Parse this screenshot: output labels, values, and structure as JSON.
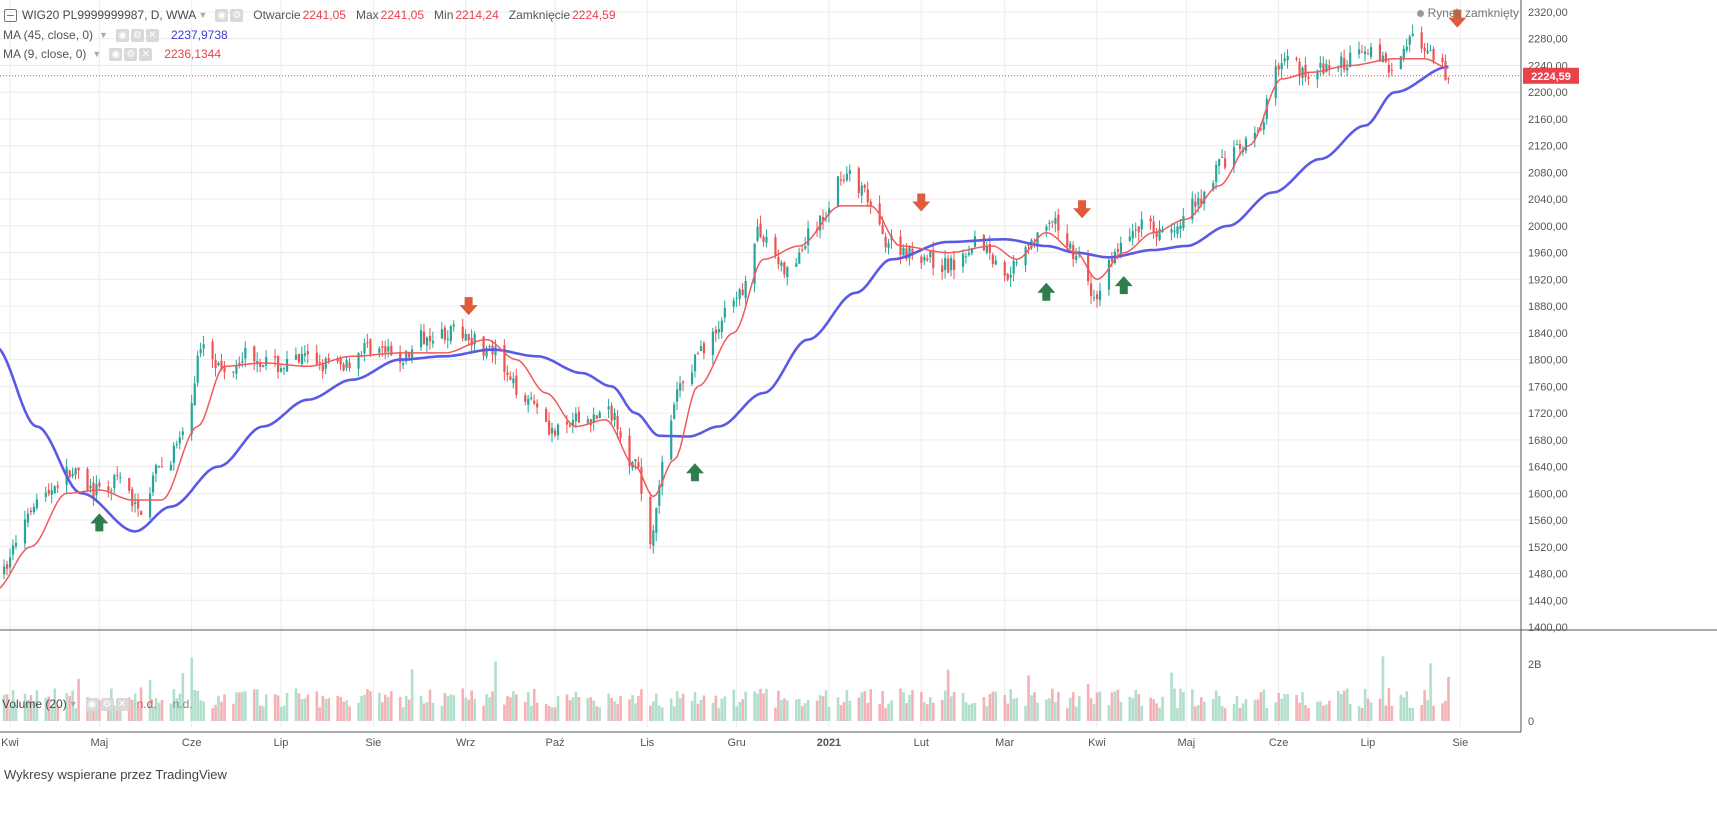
{
  "header": {
    "symbol": "WIG20 PL9999999987, D, WWA",
    "ohlc": [
      {
        "label": "Otwarcie",
        "value": "2241,05"
      },
      {
        "label": "Max",
        "value": "2241,05"
      },
      {
        "label": "Min",
        "value": "2214,24"
      },
      {
        "label": "Zamknięcie",
        "value": "2224,59"
      }
    ],
    "market_status": "Rynek zamknięty"
  },
  "indicators": [
    {
      "label": "MA (45, close, 0)",
      "value": "2237,9738",
      "color": "#3b3bdd"
    },
    {
      "label": "MA (9, close, 0)",
      "value": "2236,1344",
      "color": "#e8424b"
    }
  ],
  "volume_legend": {
    "label": "Volume (20)",
    "val1": "n.d.",
    "val2": "n.d."
  },
  "credit": "Wykresy wspierane przez TradingView",
  "colors": {
    "up": "#26a69a",
    "down": "#ef5350",
    "ma45": "#5a5ae6",
    "ma9": "#f05a5e",
    "price_label_bg": "#e8424b",
    "arrow_up": "#2e7d4f",
    "arrow_down": "#e05a3c"
  },
  "chart_data": {
    "type": "candlestick",
    "y_axis": {
      "ylim": [
        1400,
        2320
      ],
      "ticks": [
        "2320,00",
        "2280,00",
        "2240,00",
        "2200,00",
        "2160,00",
        "2120,00",
        "2080,00",
        "2040,00",
        "2000,00",
        "1960,00",
        "1920,00",
        "1880,00",
        "1840,00",
        "1800,00",
        "1760,00",
        "1720,00",
        "1680,00",
        "1640,00",
        "1600,00",
        "1560,00",
        "1520,00",
        "1480,00",
        "1440,00",
        "1400,00"
      ],
      "tick_values": [
        2320,
        2280,
        2240,
        2200,
        2160,
        2120,
        2080,
        2040,
        2000,
        1960,
        1920,
        1880,
        1840,
        1800,
        1760,
        1720,
        1680,
        1640,
        1600,
        1560,
        1520,
        1480,
        1440,
        1400
      ]
    },
    "x_axis": {
      "labels": [
        "Kwi",
        "Maj",
        "Cze",
        "Lip",
        "Sie",
        "Wrz",
        "Paź",
        "Lis",
        "Gru",
        "2021",
        "Lut",
        "Mar",
        "Kwi",
        "Maj",
        "Cze",
        "Lip",
        "Sie"
      ],
      "label_dates": [
        "2020-04-01",
        "2020-05-01",
        "2020-06-01",
        "2020-07-01",
        "2020-08-01",
        "2020-09-01",
        "2020-10-01",
        "2020-11-01",
        "2020-12-01",
        "2021-01-01",
        "2021-02-01",
        "2021-03-01",
        "2021-04-01",
        "2021-05-01",
        "2021-06-01",
        "2021-07-01",
        "2021-08-01"
      ]
    },
    "date_range": [
      "2020-04-01",
      "2021-08-01"
    ],
    "price_anchors": [
      [
        "2020-03-27",
        1470
      ],
      [
        "2020-04-10",
        1590
      ],
      [
        "2020-04-21",
        1630
      ],
      [
        "2020-05-01",
        1600
      ],
      [
        "2020-05-08",
        1620
      ],
      [
        "2020-05-14",
        1575
      ],
      [
        "2020-05-22",
        1640
      ],
      [
        "2020-05-29",
        1680
      ],
      [
        "2020-06-05",
        1830
      ],
      [
        "2020-06-12",
        1780
      ],
      [
        "2020-06-19",
        1810
      ],
      [
        "2020-06-30",
        1790
      ],
      [
        "2020-07-10",
        1800
      ],
      [
        "2020-07-20",
        1790
      ],
      [
        "2020-07-31",
        1820
      ],
      [
        "2020-08-10",
        1800
      ],
      [
        "2020-08-20",
        1840
      ],
      [
        "2020-08-31",
        1840
      ],
      [
        "2020-09-10",
        1810
      ],
      [
        "2020-09-17",
        1760
      ],
      [
        "2020-09-24",
        1740
      ],
      [
        "2020-10-01",
        1690
      ],
      [
        "2020-10-10",
        1710
      ],
      [
        "2020-10-20",
        1720
      ],
      [
        "2020-10-28",
        1640
      ],
      [
        "2020-11-02",
        1530
      ],
      [
        "2020-11-06",
        1640
      ],
      [
        "2020-11-12",
        1760
      ],
      [
        "2020-11-20",
        1820
      ],
      [
        "2020-11-30",
        1880
      ],
      [
        "2020-12-09",
        1990
      ],
      [
        "2020-12-18",
        1930
      ],
      [
        "2020-12-28",
        2000
      ],
      [
        "2021-01-06",
        2080
      ],
      [
        "2021-01-12",
        2050
      ],
      [
        "2021-01-20",
        1980
      ],
      [
        "2021-01-29",
        1960
      ],
      [
        "2021-02-10",
        1940
      ],
      [
        "2021-02-20",
        1980
      ],
      [
        "2021-03-01",
        1930
      ],
      [
        "2021-03-10",
        1980
      ],
      [
        "2021-03-18",
        2000
      ],
      [
        "2021-03-25",
        1960
      ],
      [
        "2021-03-31",
        1890
      ],
      [
        "2021-04-07",
        1960
      ],
      [
        "2021-04-15",
        2000
      ],
      [
        "2021-04-26",
        1990
      ],
      [
        "2021-05-05",
        2040
      ],
      [
        "2021-05-14",
        2100
      ],
      [
        "2021-05-24",
        2130
      ],
      [
        "2021-06-02",
        2250
      ],
      [
        "2021-06-11",
        2230
      ],
      [
        "2021-06-21",
        2240
      ],
      [
        "2021-06-30",
        2270
      ],
      [
        "2021-07-08",
        2240
      ],
      [
        "2021-07-15",
        2280
      ],
      [
        "2021-07-23",
        2250
      ],
      [
        "2021-07-28",
        2224.59
      ]
    ],
    "ma45_anchors": [
      [
        "2020-03-27",
        1820
      ],
      [
        "2020-04-10",
        1700
      ],
      [
        "2020-04-25",
        1600
      ],
      [
        "2020-05-13",
        1543
      ],
      [
        "2020-05-25",
        1580
      ],
      [
        "2020-06-10",
        1640
      ],
      [
        "2020-06-25",
        1700
      ],
      [
        "2020-07-10",
        1740
      ],
      [
        "2020-07-25",
        1770
      ],
      [
        "2020-08-10",
        1800
      ],
      [
        "2020-08-25",
        1805
      ],
      [
        "2020-09-10",
        1815
      ],
      [
        "2020-09-25",
        1805
      ],
      [
        "2020-10-10",
        1780
      ],
      [
        "2020-10-20",
        1760
      ],
      [
        "2020-10-28",
        1720
      ],
      [
        "2020-11-05",
        1686
      ],
      [
        "2020-11-15",
        1685
      ],
      [
        "2020-11-25",
        1700
      ],
      [
        "2020-12-10",
        1750
      ],
      [
        "2020-12-25",
        1830
      ],
      [
        "2021-01-10",
        1900
      ],
      [
        "2021-01-22",
        1950
      ],
      [
        "2021-02-10",
        1976
      ],
      [
        "2021-03-01",
        1980
      ],
      [
        "2021-03-15",
        1970
      ],
      [
        "2021-03-25",
        1960
      ],
      [
        "2021-04-05",
        1953
      ],
      [
        "2021-04-20",
        1964
      ],
      [
        "2021-05-01",
        1970
      ],
      [
        "2021-05-15",
        2000
      ],
      [
        "2021-05-30",
        2050
      ],
      [
        "2021-06-15",
        2100
      ],
      [
        "2021-06-30",
        2150
      ],
      [
        "2021-07-10",
        2200
      ],
      [
        "2021-07-28",
        2237.97
      ]
    ],
    "ma9_anchors": [
      [
        "2020-03-27",
        1455
      ],
      [
        "2020-04-08",
        1520
      ],
      [
        "2020-04-20",
        1600
      ],
      [
        "2020-05-01",
        1605
      ],
      [
        "2020-05-12",
        1590
      ],
      [
        "2020-05-22",
        1590
      ],
      [
        "2020-06-03",
        1700
      ],
      [
        "2020-06-12",
        1790
      ],
      [
        "2020-06-25",
        1795
      ],
      [
        "2020-07-10",
        1790
      ],
      [
        "2020-07-25",
        1805
      ],
      [
        "2020-08-10",
        1810
      ],
      [
        "2020-08-25",
        1810
      ],
      [
        "2020-09-08",
        1830
      ],
      [
        "2020-09-18",
        1800
      ],
      [
        "2020-09-28",
        1750
      ],
      [
        "2020-10-08",
        1700
      ],
      [
        "2020-10-18",
        1710
      ],
      [
        "2020-10-28",
        1640
      ],
      [
        "2020-11-03",
        1595
      ],
      [
        "2020-11-10",
        1650
      ],
      [
        "2020-11-18",
        1760
      ],
      [
        "2020-11-30",
        1840
      ],
      [
        "2020-12-10",
        1950
      ],
      [
        "2020-12-22",
        1970
      ],
      [
        "2021-01-05",
        2030
      ],
      [
        "2021-01-15",
        2030
      ],
      [
        "2021-01-25",
        1970
      ],
      [
        "2021-02-10",
        1960
      ],
      [
        "2021-02-25",
        1970
      ],
      [
        "2021-03-05",
        1950
      ],
      [
        "2021-03-15",
        1990
      ],
      [
        "2021-03-25",
        1960
      ],
      [
        "2021-04-01",
        1920
      ],
      [
        "2021-04-10",
        1960
      ],
      [
        "2021-04-20",
        1990
      ],
      [
        "2021-05-01",
        2010
      ],
      [
        "2021-05-12",
        2060
      ],
      [
        "2021-05-22",
        2120
      ],
      [
        "2021-06-02",
        2220
      ],
      [
        "2021-06-12",
        2230
      ],
      [
        "2021-06-25",
        2240
      ],
      [
        "2021-07-10",
        2250
      ],
      [
        "2021-07-20",
        2250
      ],
      [
        "2021-07-28",
        2236.13
      ]
    ],
    "signal_arrows": [
      {
        "date": "2020-05-01",
        "type": "up",
        "price": 1555
      },
      {
        "date": "2020-09-02",
        "type": "down",
        "price": 1880
      },
      {
        "date": "2020-11-17",
        "type": "up",
        "price": 1630
      },
      {
        "date": "2021-02-01",
        "type": "down",
        "price": 2035
      },
      {
        "date": "2021-03-15",
        "type": "up",
        "price": 1900
      },
      {
        "date": "2021-03-27",
        "type": "down",
        "price": 2025
      },
      {
        "date": "2021-04-10",
        "type": "up",
        "price": 1910
      },
      {
        "date": "2021-07-31",
        "type": "down",
        "price": 2310
      }
    ],
    "last_price": 2224.59,
    "last_price_label": "2224,59",
    "volume": {
      "ticks": [
        "2B",
        "0"
      ],
      "tick_values": [
        2,
        0
      ],
      "unit": "B",
      "ylim": [
        0,
        3.1
      ]
    }
  }
}
